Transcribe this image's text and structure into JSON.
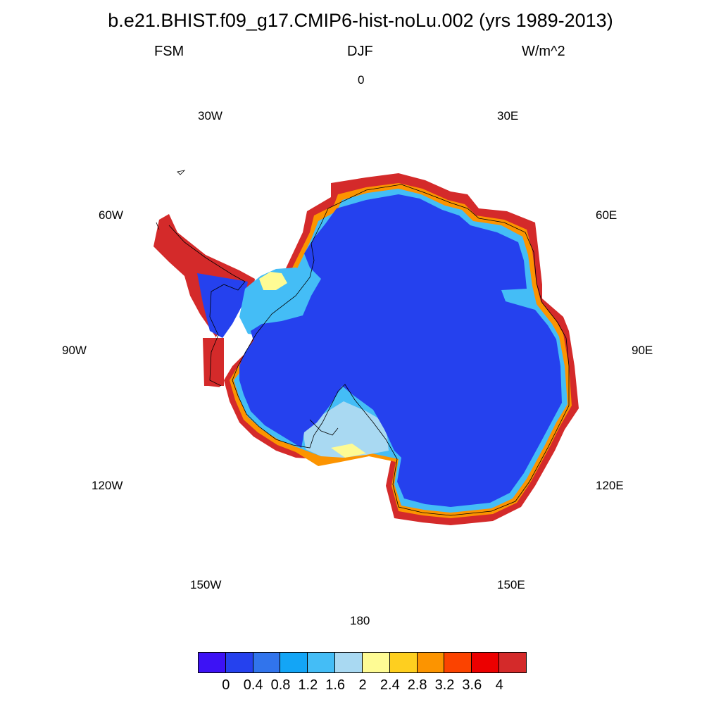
{
  "title": "b.e21.BHIST.f09_g17.CMIP6-hist-noLu.002 (yrs 1989-2013)",
  "subtitle": {
    "left": "FSM",
    "center": "DJF",
    "right": "W/m^2"
  },
  "longitude_labels": {
    "lon_0": "0",
    "lon_30e": "30E",
    "lon_60e": "60E",
    "lon_90e": "90E",
    "lon_120e": "120E",
    "lon_150e": "150E",
    "lon_180": "180",
    "lon_150w": "150W",
    "lon_120w": "120W",
    "lon_90w": "90W",
    "lon_60w": "60W",
    "lon_30w": "30W"
  },
  "map": {
    "projection": "south polar stereographic",
    "variable": "FSM",
    "season": "DJF",
    "units": "W/m^2",
    "interior_value_range": [
      0,
      0.4
    ],
    "coastal_value_range": [
      2,
      4
    ]
  },
  "colorbar": {
    "colors": [
      "#3d12f5",
      "#2541ee",
      "#3174ec",
      "#13a5f6",
      "#44bdf6",
      "#a9d9f2",
      "#fefb94",
      "#fecf1f",
      "#fc9400",
      "#fb4300",
      "#ec0000",
      "#d42a2a"
    ],
    "labels": [
      "0",
      "0.4",
      "0.8",
      "1.2",
      "1.6",
      "2",
      "2.4",
      "2.8",
      "3.2",
      "3.6",
      "4"
    ]
  }
}
